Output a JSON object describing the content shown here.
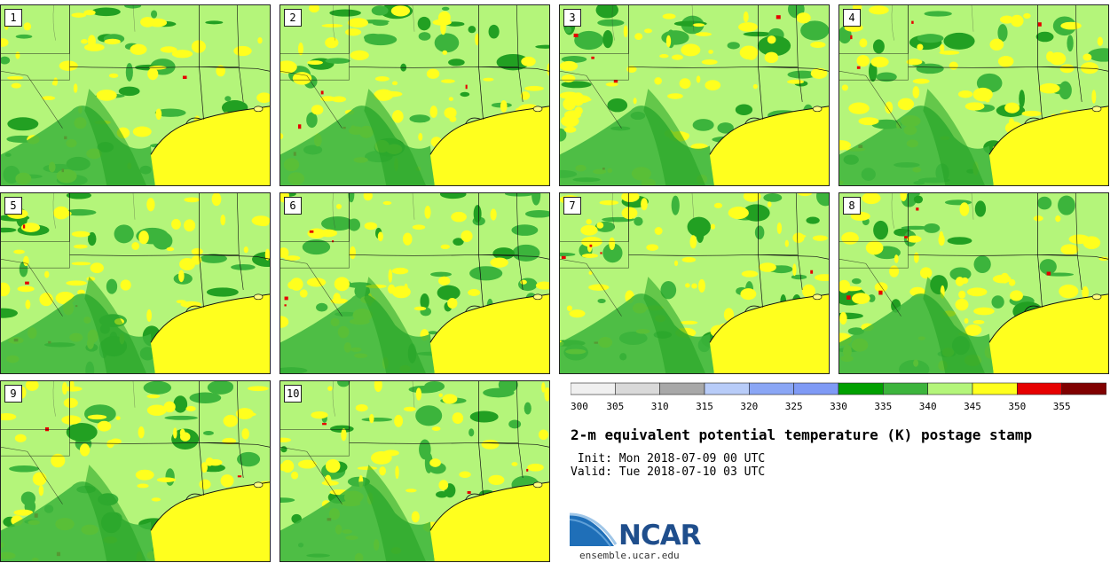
{
  "panels": [
    {
      "label": "1"
    },
    {
      "label": "2"
    },
    {
      "label": "3"
    },
    {
      "label": "4"
    },
    {
      "label": "5"
    },
    {
      "label": "6"
    },
    {
      "label": "7"
    },
    {
      "label": "8"
    },
    {
      "label": "9"
    },
    {
      "label": "10"
    }
  ],
  "colorbar": {
    "ticks": [
      "300",
      "305",
      "310",
      "315",
      "320",
      "325",
      "330",
      "335",
      "340",
      "345",
      "350",
      "355"
    ],
    "colors": [
      "#f0f0f0",
      "#d9d9d9",
      "#a8a8a8",
      "#b8ccf8",
      "#8aa6f5",
      "#7f9af5",
      "#00a000",
      "#3cb43c",
      "#b4f57a",
      "#ffff1e",
      "#e60000",
      "#800000"
    ]
  },
  "title": "2-m equivalent potential temperature (K) postage stamp",
  "init": " Init: Mon 2018-07-09 00 UTC",
  "valid": "Valid: Tue 2018-07-10 03 UTC",
  "logo": {
    "text": "NCAR",
    "site": "ensemble.ucar.edu"
  },
  "map_colors": {
    "base": "#b4f57a",
    "green": "#3cb43c",
    "dark_green": "#22a022",
    "yellow": "#ffff1e",
    "red": "#e60000",
    "water": "#ffffff"
  }
}
